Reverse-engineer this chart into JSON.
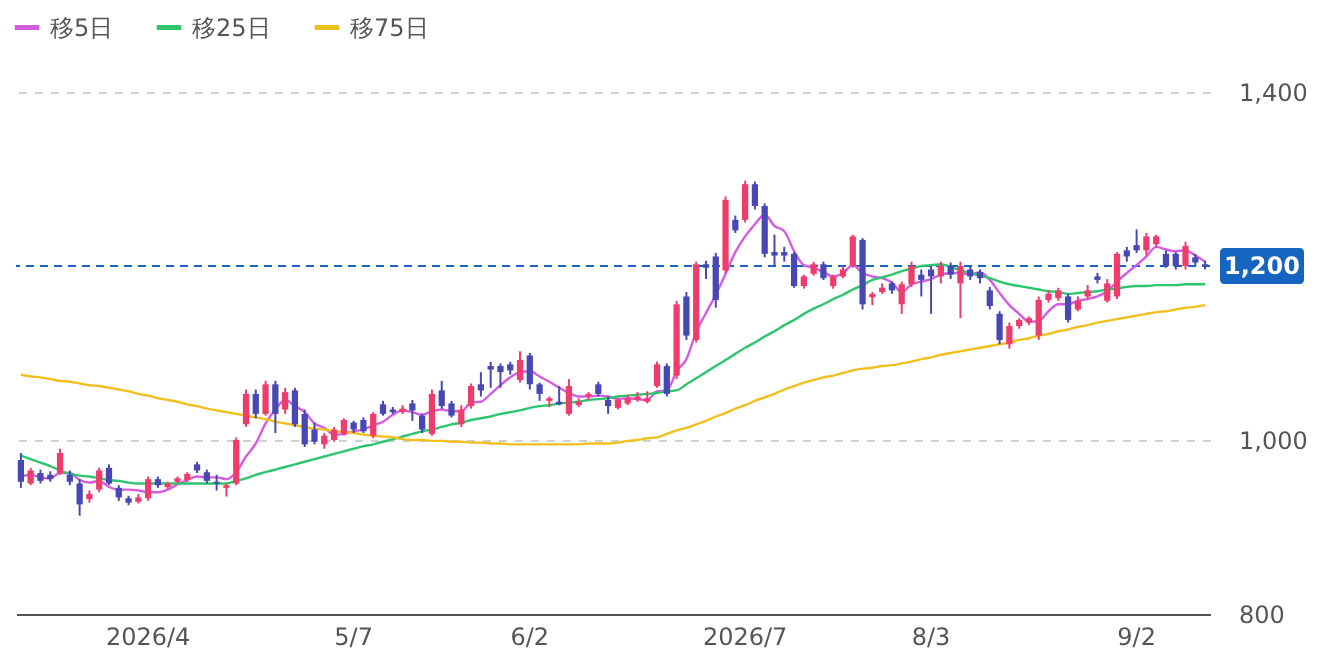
{
  "chart_data": {
    "type": "candlestick",
    "categories": [
      null,
      null,
      null,
      null,
      null,
      null,
      null,
      null,
      null,
      null,
      null,
      null,
      null,
      "2026/4",
      null,
      null,
      null,
      null,
      null,
      null,
      null,
      null,
      null,
      null,
      null,
      null,
      null,
      null,
      null,
      null,
      null,
      null,
      null,
      null,
      "5/7",
      null,
      null,
      null,
      null,
      null,
      null,
      null,
      null,
      null,
      null,
      null,
      null,
      null,
      null,
      null,
      null,
      null,
      "6/2",
      null,
      null,
      null,
      null,
      null,
      null,
      null,
      null,
      null,
      null,
      null,
      null,
      null,
      null,
      null,
      null,
      null,
      null,
      null,
      null,
      null,
      "2026/7",
      null,
      null,
      null,
      null,
      null,
      null,
      null,
      null,
      null,
      null,
      null,
      null,
      null,
      null,
      null,
      null,
      null,
      null,
      "8/3",
      null,
      null,
      null,
      null,
      null,
      null,
      null,
      null,
      null,
      null,
      null,
      null,
      null,
      null,
      null,
      null,
      null,
      null,
      null,
      null,
      "9/2",
      null,
      null,
      null,
      null,
      null,
      null,
      null
    ],
    "ohlc": [
      [
        977,
        985,
        945,
        952
      ],
      [
        950,
        968,
        948,
        965
      ],
      [
        962,
        966,
        950,
        953
      ],
      [
        960,
        964,
        952,
        955
      ],
      [
        962,
        990,
        960,
        985
      ],
      [
        960,
        965,
        948,
        952
      ],
      [
        950,
        955,
        913,
        926
      ],
      [
        932,
        942,
        928,
        938
      ],
      [
        943,
        968,
        940,
        965
      ],
      [
        968,
        972,
        948,
        950
      ],
      [
        945,
        948,
        930,
        934
      ],
      [
        933,
        936,
        925,
        928
      ],
      [
        929,
        938,
        927,
        934
      ],
      [
        933,
        958,
        930,
        955
      ],
      [
        955,
        958,
        945,
        948
      ],
      [
        946,
        952,
        944,
        950
      ],
      [
        952,
        958,
        950,
        956
      ],
      [
        954,
        963,
        952,
        961
      ],
      [
        972,
        975,
        962,
        965
      ],
      [
        963,
        966,
        950,
        953
      ],
      [
        952,
        960,
        942,
        950
      ],
      [
        945,
        950,
        935,
        948
      ],
      [
        950,
        1003,
        948,
        1000
      ],
      [
        1018,
        1058,
        1015,
        1053
      ],
      [
        1053,
        1058,
        1025,
        1030
      ],
      [
        1030,
        1068,
        1028,
        1064
      ],
      [
        1064,
        1068,
        1008,
        1030
      ],
      [
        1035,
        1060,
        1030,
        1055
      ],
      [
        1057,
        1060,
        1015,
        1018
      ],
      [
        1030,
        1035,
        992,
        995
      ],
      [
        1012,
        1020,
        995,
        998
      ],
      [
        995,
        1008,
        990,
        1005
      ],
      [
        1000,
        1015,
        998,
        1012
      ],
      [
        1007,
        1025,
        1005,
        1023
      ],
      [
        1020,
        1022,
        1008,
        1012
      ],
      [
        1023,
        1026,
        1008,
        1010
      ],
      [
        1005,
        1032,
        1002,
        1030
      ],
      [
        1041,
        1045,
        1028,
        1030
      ],
      [
        1035,
        1038,
        1030,
        1032
      ],
      [
        1032,
        1040,
        1030,
        1036
      ],
      [
        1042,
        1046,
        1022,
        1034
      ],
      [
        1028,
        1030,
        1008,
        1012
      ],
      [
        1007,
        1058,
        1005,
        1053
      ],
      [
        1057,
        1068,
        1036,
        1039
      ],
      [
        1042,
        1045,
        1026,
        1028
      ],
      [
        1018,
        1040,
        1015,
        1035
      ],
      [
        1039,
        1065,
        1036,
        1062
      ],
      [
        1064,
        1078,
        1050,
        1057
      ],
      [
        1085,
        1090,
        1060,
        1081
      ],
      [
        1085,
        1088,
        1060,
        1078
      ],
      [
        1087,
        1090,
        1075,
        1080
      ],
      [
        1069,
        1102,
        1066,
        1092
      ],
      [
        1097,
        1100,
        1058,
        1064
      ],
      [
        1064,
        1066,
        1045,
        1053
      ],
      [
        1045,
        1050,
        1038,
        1048
      ],
      [
        1044,
        1062,
        1040,
        1041
      ],
      [
        1030,
        1070,
        1028,
        1062
      ],
      [
        1040,
        1048,
        1038,
        1044
      ],
      [
        1050,
        1055,
        1046,
        1053
      ],
      [
        1064,
        1067,
        1050,
        1053
      ],
      [
        1046,
        1050,
        1030,
        1039
      ],
      [
        1037,
        1048,
        1035,
        1046
      ],
      [
        1042,
        1052,
        1040,
        1048
      ],
      [
        1046,
        1055,
        1044,
        1050
      ],
      [
        1044,
        1056,
        1042,
        1048
      ],
      [
        1062,
        1090,
        1060,
        1087
      ],
      [
        1085,
        1088,
        1050,
        1053
      ],
      [
        1074,
        1160,
        1070,
        1156
      ],
      [
        1165,
        1170,
        1115,
        1120
      ],
      [
        1115,
        1205,
        1112,
        1202
      ],
      [
        1202,
        1206,
        1185,
        1198
      ],
      [
        1211,
        1215,
        1152,
        1161
      ],
      [
        1195,
        1280,
        1192,
        1276
      ],
      [
        1253,
        1258,
        1238,
        1241
      ],
      [
        1253,
        1298,
        1250,
        1294
      ],
      [
        1294,
        1297,
        1265,
        1269
      ],
      [
        1269,
        1272,
        1210,
        1214
      ],
      [
        1216,
        1236,
        1200,
        1212
      ],
      [
        1216,
        1222,
        1205,
        1212
      ],
      [
        1214,
        1216,
        1175,
        1177
      ],
      [
        1177,
        1190,
        1174,
        1188
      ],
      [
        1191,
        1205,
        1189,
        1202
      ],
      [
        1202,
        1205,
        1184,
        1186
      ],
      [
        1177,
        1190,
        1174,
        1188
      ],
      [
        1188,
        1200,
        1186,
        1196
      ],
      [
        1200,
        1236,
        1198,
        1234
      ],
      [
        1230,
        1232,
        1150,
        1156
      ],
      [
        1164,
        1170,
        1155,
        1168
      ],
      [
        1170,
        1180,
        1168,
        1175
      ],
      [
        1180,
        1182,
        1168,
        1172
      ],
      [
        1156,
        1182,
        1145,
        1179
      ],
      [
        1179,
        1205,
        1176,
        1200
      ],
      [
        1190,
        1196,
        1165,
        1184
      ],
      [
        1196,
        1200,
        1145,
        1188
      ],
      [
        1188,
        1205,
        1180,
        1200
      ],
      [
        1200,
        1204,
        1185,
        1190
      ],
      [
        1180,
        1205,
        1140,
        1200
      ],
      [
        1196,
        1200,
        1184,
        1188
      ],
      [
        1193,
        1196,
        1180,
        1186
      ],
      [
        1172,
        1176,
        1150,
        1154
      ],
      [
        1145,
        1148,
        1110,
        1115
      ],
      [
        1110,
        1135,
        1105,
        1131
      ],
      [
        1131,
        1140,
        1128,
        1138
      ],
      [
        1135,
        1142,
        1132,
        1140
      ],
      [
        1120,
        1165,
        1115,
        1161
      ],
      [
        1161,
        1172,
        1158,
        1168
      ],
      [
        1163,
        1175,
        1160,
        1172
      ],
      [
        1165,
        1168,
        1135,
        1138
      ],
      [
        1150,
        1165,
        1148,
        1160
      ],
      [
        1165,
        1178,
        1162,
        1172
      ],
      [
        1188,
        1192,
        1180,
        1184
      ],
      [
        1160,
        1185,
        1158,
        1180
      ],
      [
        1165,
        1216,
        1162,
        1214
      ],
      [
        1218,
        1222,
        1205,
        1211
      ],
      [
        1224,
        1242,
        1215,
        1218
      ],
      [
        1218,
        1238,
        1212,
        1234
      ],
      [
        1225,
        1236,
        1222,
        1234
      ],
      [
        1214,
        1218,
        1198,
        1200
      ],
      [
        1214,
        1216,
        1196,
        1200
      ],
      [
        1200,
        1228,
        1196,
        1223
      ],
      [
        1210,
        1214,
        1200,
        1204
      ],
      [
        1202,
        1206,
        1196,
        1200
      ]
    ],
    "colors": [
      "#4848b4",
      "#ee3d6c",
      "#4848b4",
      "#4848b4",
      "#ee3d6c",
      "#4848b4",
      "#4848b4",
      "#ee3d6c",
      "#ee3d6c",
      "#4848b4",
      "#4848b4",
      "#4848b4",
      "#ee3d6c",
      "#ee3d6c",
      "#4848b4",
      "#ee3d6c",
      "#ee3d6c",
      "#ee3d6c",
      "#4848b4",
      "#4848b4",
      "#4848b4",
      "#ee3d6c",
      "#ee3d6c",
      "#ee3d6c",
      "#4848b4",
      "#ee3d6c",
      "#4848b4",
      "#ee3d6c",
      "#4848b4",
      "#4848b4",
      "#4848b4",
      "#ee3d6c",
      "#ee3d6c",
      "#ee3d6c",
      "#4848b4",
      "#4848b4",
      "#ee3d6c",
      "#4848b4",
      "#4848b4",
      "#ee3d6c",
      "#4848b4",
      "#4848b4",
      "#ee3d6c",
      "#4848b4",
      "#4848b4",
      "#ee3d6c",
      "#ee3d6c",
      "#4848b4",
      "#4848b4",
      "#4848b4",
      "#4848b4",
      "#ee3d6c",
      "#4848b4",
      "#4848b4",
      "#ee3d6c",
      "#4848b4",
      "#ee3d6c",
      "#ee3d6c",
      "#ee3d6c",
      "#4848b4",
      "#4848b4",
      "#ee3d6c",
      "#ee3d6c",
      "#ee3d6c",
      "#ee3d6c",
      "#ee3d6c",
      "#4848b4",
      "#ee3d6c",
      "#4848b4",
      "#ee3d6c",
      "#4848b4",
      "#4848b4",
      "#ee3d6c",
      "#4848b4",
      "#ee3d6c",
      "#4848b4",
      "#4848b4",
      "#4848b4",
      "#4848b4",
      "#4848b4",
      "#ee3d6c",
      "#ee3d6c",
      "#4848b4",
      "#ee3d6c",
      "#ee3d6c",
      "#ee3d6c",
      "#4848b4",
      "#ee3d6c",
      "#ee3d6c",
      "#4848b4",
      "#ee3d6c",
      "#ee3d6c",
      "#4848b4",
      "#4848b4",
      "#ee3d6c",
      "#4848b4",
      "#ee3d6c",
      "#4848b4",
      "#4848b4",
      "#4848b4",
      "#4848b4",
      "#ee3d6c",
      "#ee3d6c",
      "#ee3d6c",
      "#ee3d6c",
      "#ee3d6c",
      "#ee3d6c",
      "#4848b4",
      "#ee3d6c",
      "#ee3d6c",
      "#4848b4",
      "#ee3d6c",
      "#ee3d6c",
      "#4848b4",
      "#4848b4",
      "#ee3d6c",
      "#ee3d6c",
      "#4848b4",
      "#4848b4",
      "#ee3d6c",
      "#4848b4",
      "#4848b4"
    ],
    "series": [
      {
        "name": "移5日",
        "type": "line",
        "color": "#d45ddf",
        "values": [
          958,
          960,
          957,
          956,
          962,
          962,
          954,
          951,
          953,
          946,
          943,
          943,
          942,
          940,
          940,
          943,
          949,
          954,
          958,
          957,
          957,
          955,
          963,
          981,
          996,
          1019,
          1035,
          1046,
          1039,
          1032,
          1019,
          1014,
          1006,
          1007,
          1010,
          1012,
          1017,
          1021,
          1029,
          1034,
          1032,
          1029,
          1033,
          1035,
          1033,
          1033,
          1043,
          1044,
          1053,
          1063,
          1072,
          1078,
          1079,
          1073,
          1067,
          1060,
          1054,
          1050,
          1050,
          1051,
          1050,
          1047,
          1048,
          1047,
          1046,
          1056,
          1057,
          1079,
          1093,
          1124,
          1146,
          1167,
          1191,
          1216,
          1234,
          1248,
          1259,
          1246,
          1240,
          1217,
          1201,
          1198,
          1193,
          1188,
          1192,
          1201,
          1192,
          1188,
          1186,
          1181,
          1170,
          1179,
          1182,
          1185,
          1190,
          1192,
          1192,
          1190,
          1193,
          1184,
          1169,
          1155,
          1145,
          1136,
          1137,
          1148,
          1156,
          1156,
          1160,
          1162,
          1165,
          1171,
          1182,
          1192,
          1201,
          1211,
          1222,
          1219,
          1217,
          1218,
          1212,
          1205
        ]
      },
      {
        "name": "移25日",
        "type": "line",
        "color": "#2ec56f",
        "values": [
          982,
          978,
          974,
          970,
          965,
          961,
          959,
          958,
          956,
          954,
          953,
          951,
          950,
          950,
          950,
          950,
          950,
          950,
          950,
          950,
          950,
          950,
          953,
          956,
          960,
          963,
          966,
          969,
          972,
          975,
          978,
          981,
          984,
          987,
          990,
          993,
          995,
          998,
          1001,
          1004,
          1007,
          1010,
          1012,
          1015,
          1018,
          1020,
          1023,
          1025,
          1027,
          1030,
          1032,
          1034,
          1037,
          1039,
          1040,
          1042,
          1043,
          1044,
          1046,
          1047,
          1048,
          1050,
          1051,
          1052,
          1053,
          1054,
          1056,
          1057,
          1064,
          1071,
          1078,
          1085,
          1092,
          1099,
          1106,
          1112,
          1119,
          1125,
          1132,
          1138,
          1145,
          1151,
          1156,
          1162,
          1167,
          1173,
          1178,
          1184,
          1187,
          1190,
          1194,
          1197,
          1200,
          1201,
          1202,
          1199,
          1195,
          1192,
          1189,
          1186,
          1182,
          1179,
          1177,
          1175,
          1173,
          1171,
          1170,
          1168,
          1169,
          1170,
          1171,
          1173,
          1174,
          1176,
          1177,
          1177,
          1178,
          1178,
          1178,
          1179,
          1179,
          1179
        ]
      },
      {
        "name": "移75日",
        "type": "line",
        "color": "#f2c01e",
        "values": [
          1075,
          1073,
          1072,
          1070,
          1068,
          1067,
          1065,
          1063,
          1062,
          1060,
          1058,
          1056,
          1053,
          1051,
          1048,
          1046,
          1044,
          1041,
          1039,
          1036,
          1034,
          1032,
          1030,
          1028,
          1026,
          1024,
          1021,
          1019,
          1017,
          1015,
          1013,
          1012,
          1010,
          1009,
          1008,
          1006,
          1005,
          1004,
          1003,
          1001,
          1000,
          1000,
          999,
          999,
          998,
          998,
          997,
          997,
          996,
          996,
          995,
          995,
          995,
          995,
          995,
          995,
          995,
          995,
          996,
          996,
          996,
          997,
          999,
          1000,
          1002,
          1003,
          1007,
          1011,
          1014,
          1018,
          1022,
          1027,
          1031,
          1036,
          1040,
          1045,
          1049,
          1053,
          1058,
          1062,
          1066,
          1069,
          1072,
          1074,
          1077,
          1080,
          1082,
          1083,
          1085,
          1086,
          1088,
          1090,
          1093,
          1095,
          1098,
          1100,
          1102,
          1104,
          1106,
          1108,
          1110,
          1112,
          1115,
          1117,
          1120,
          1122,
          1125,
          1127,
          1130,
          1132,
          1135,
          1137,
          1139,
          1141,
          1143,
          1145,
          1147,
          1148,
          1150,
          1152,
          1153,
          1155
        ]
      }
    ],
    "ylim": [
      800,
      1400
    ],
    "yticks": [
      {
        "value": 800,
        "label": "800"
      },
      {
        "value": 1000,
        "label": "1,000"
      },
      {
        "value": 1400,
        "label": "1,400"
      }
    ],
    "grid": "y",
    "legend": "top left",
    "ref_lines": [
      {
        "axis": "y",
        "value": 1200,
        "label": "1,200",
        "color": "#1565c0",
        "line_style": "dashed"
      }
    ]
  }
}
